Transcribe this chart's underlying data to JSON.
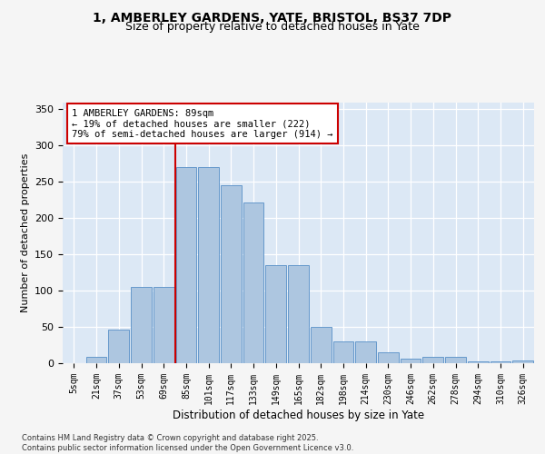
{
  "title_line1": "1, AMBERLEY GARDENS, YATE, BRISTOL, BS37 7DP",
  "title_line2": "Size of property relative to detached houses in Yate",
  "xlabel": "Distribution of detached houses by size in Yate",
  "ylabel": "Number of detached properties",
  "categories": [
    "5sqm",
    "21sqm",
    "37sqm",
    "53sqm",
    "69sqm",
    "85sqm",
    "101sqm",
    "117sqm",
    "133sqm",
    "149sqm",
    "165sqm",
    "182sqm",
    "198sqm",
    "214sqm",
    "230sqm",
    "246sqm",
    "262sqm",
    "278sqm",
    "294sqm",
    "310sqm",
    "326sqm"
  ],
  "values": [
    0,
    9,
    46,
    105,
    105,
    270,
    270,
    245,
    222,
    135,
    135,
    50,
    30,
    30,
    15,
    6,
    9,
    9,
    3,
    3,
    4
  ],
  "bar_color": "#adc6e0",
  "bar_edge_color": "#6699cc",
  "vline_color": "#cc0000",
  "vline_x_index": 4.5,
  "annotation_text": "1 AMBERLEY GARDENS: 89sqm\n← 19% of detached houses are smaller (222)\n79% of semi-detached houses are larger (914) →",
  "annotation_box_facecolor": "#ffffff",
  "annotation_box_edgecolor": "#cc0000",
  "background_color": "#dce8f5",
  "grid_color": "#ffffff",
  "fig_facecolor": "#f5f5f5",
  "footer_text": "Contains HM Land Registry data © Crown copyright and database right 2025.\nContains public sector information licensed under the Open Government Licence v3.0.",
  "ylim": [
    0,
    360
  ],
  "yticks": [
    0,
    50,
    100,
    150,
    200,
    250,
    300,
    350
  ]
}
